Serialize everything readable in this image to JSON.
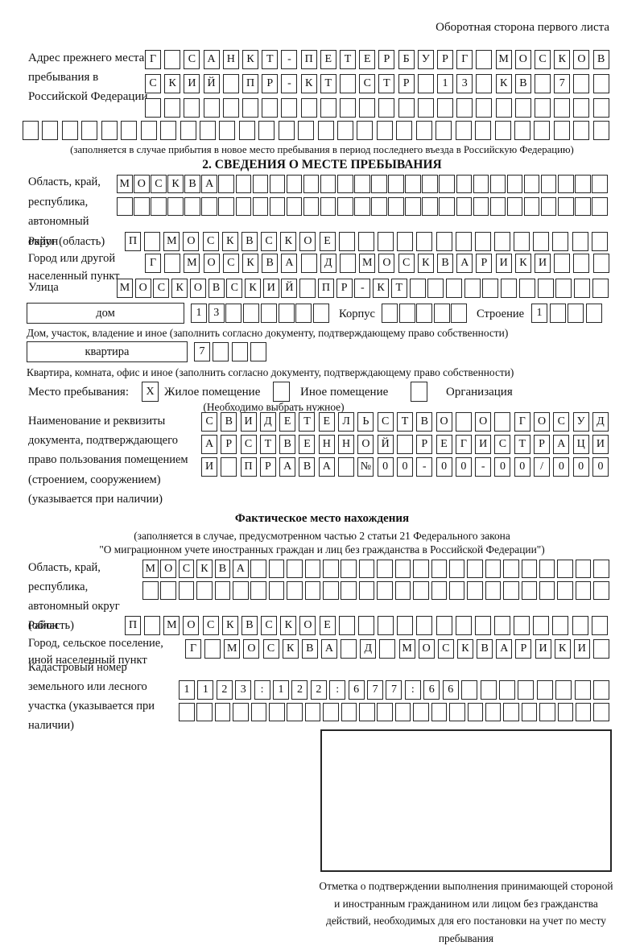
{
  "page": {
    "header_note": "Оборотная сторона первого листа"
  },
  "prev_address": {
    "label": "Адрес прежнего места пребывания в Российской Федерации",
    "rows": [
      {
        "cells": "Г САНКТ-ПЕТЕРБУРГ МОСКОВ",
        "count": 24
      },
      {
        "cells": "СКИЙ ПР-КТ СТР 13 КВ 7",
        "count": 24
      },
      {
        "cells": "",
        "count": 24
      },
      {
        "cells": "",
        "count": 30
      }
    ],
    "caption": "(заполняется в случае прибытия в новое место пребывания в период последнего въезда в Российскую Федерацию)"
  },
  "section2": {
    "heading": "2. СВЕДЕНИЯ О МЕСТЕ ПРЕБЫВАНИЯ",
    "oblast": {
      "label": "Область, край, республика, автономный округ (область)",
      "rows": [
        {
          "cells": "МОСКВА",
          "count": 29
        },
        {
          "cells": "",
          "count": 29
        }
      ]
    },
    "raion": {
      "label": "Район",
      "row": {
        "cells": "П МОСКВСКОЕ",
        "count": 25
      }
    },
    "gorod": {
      "label": "Город или другой населенный пункт",
      "row": {
        "cells": "Г МОСКВА Д МОСКВАРИКИ",
        "count": 24
      }
    },
    "ulitsa": {
      "label": "Улица",
      "row": {
        "cells": "МОСКОВСКИЙ ПР-КТ",
        "count": 27
      }
    },
    "dom": {
      "label": "дом",
      "row": {
        "cells": "13",
        "count": 8
      },
      "korpus_label": "Корпус",
      "korpus_row": {
        "cells": "",
        "count": 5
      },
      "stroenie_label": "Строение",
      "stroenie_row": {
        "cells": "1",
        "count": 4
      },
      "caption": "Дом, участок, владение и иное (заполнить согласно документу, подтверждающему право собственности)"
    },
    "kvartira": {
      "label": "квартира",
      "row": {
        "cells": "7",
        "count": 4
      },
      "caption": "Квартира, комната, офис и иное (заполнить согласно документу, подтверждающему право собственности)"
    },
    "mesto": {
      "label": "Место пребывания:",
      "checked_mark": "X",
      "option1": "Жилое помещение",
      "option2": "Иное помещение",
      "option3": "Организация",
      "note": "(Необходимо выбрать нужное)"
    },
    "doc": {
      "label": "Наименование и реквизиты документа, подтверждающего право пользования помещением (строением, сооружением) (указывается при наличии)",
      "rows": [
        {
          "cells": "СВИДЕТЕЛЬСТВО О ГОСУД",
          "count": 21
        },
        {
          "cells": "АРСТВЕННОЙ РЕГИСТРАЦИ",
          "count": 21
        },
        {
          "cells": "И ПРАВА №00-00-00/000",
          "count": 21
        }
      ]
    }
  },
  "factual": {
    "heading": "Фактическое место нахождения",
    "note_line1": "(заполняется в случае, предусмотренном частью 2 статьи 21 Федерального закона",
    "note_line2": "\"О миграционном учете иностранных граждан и лиц без гражданства в Российской Федерации\")",
    "oblast": {
      "label": "Область, край, республика, автономный округ (область)",
      "rows": [
        {
          "cells": "МОСКВА",
          "count": 26
        },
        {
          "cells": "",
          "count": 26
        }
      ]
    },
    "raion": {
      "label": "Район",
      "row": {
        "cells": "П МОСКВСКОЕ",
        "count": 25
      }
    },
    "gorod": {
      "label": "Город, сельское поселение, иной населенный пункт",
      "row": {
        "cells": "Г МОСКВА Д МОСКВАРИКИ",
        "count": 22
      }
    },
    "kadastr": {
      "label": "Кадастровый номер земельного или лесного участка (указывается при наличии)",
      "rows": [
        {
          "cells": "1123:122:677:66",
          "count": 23
        },
        {
          "cells": "",
          "count": 24
        }
      ]
    }
  },
  "stamp": {
    "caption": "Отметка о подтверждении выполнения принимающей стороной и иностранным гражданином или лицом без гражданства действий, необходимых для его постановки на учет по месту пребывания"
  }
}
